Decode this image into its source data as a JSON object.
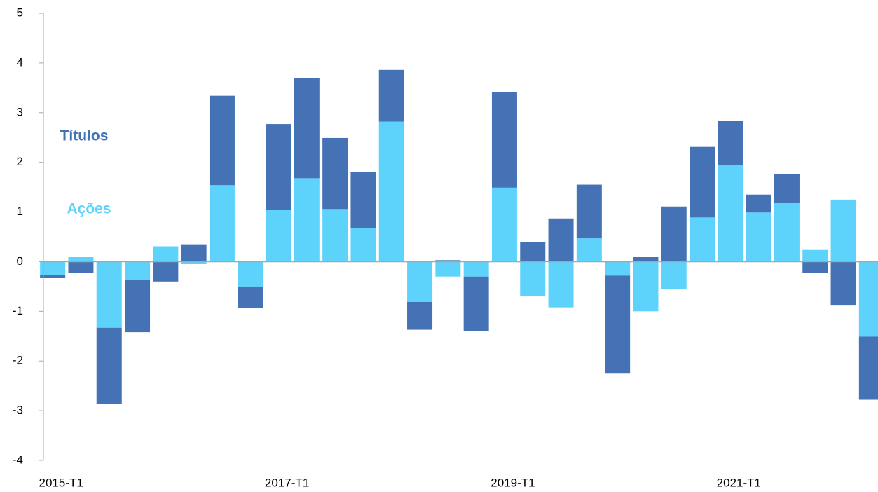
{
  "chart_data": {
    "type": "bar",
    "stacked": true,
    "categories": [
      "2015-T1",
      null,
      null,
      null,
      null,
      null,
      null,
      null,
      "2017-T1",
      null,
      null,
      null,
      null,
      null,
      null,
      null,
      "2019-T1",
      null,
      null,
      null,
      null,
      null,
      null,
      null,
      "2021-T1",
      null,
      null,
      null,
      null,
      null
    ],
    "series": [
      {
        "name": "Ações",
        "color": "#5dd3fb",
        "values": [
          -0.27,
          0.1,
          -1.33,
          -0.37,
          0.31,
          -0.04,
          1.54,
          -0.5,
          1.05,
          1.68,
          1.06,
          0.67,
          2.82,
          -0.81,
          -0.3,
          -0.3,
          1.49,
          -0.7,
          -0.92,
          0.47,
          -0.28,
          -1.0,
          -0.55,
          0.89,
          1.95,
          0.99,
          1.18,
          0.25,
          1.25,
          -1.51
        ]
      },
      {
        "name": "Títulos",
        "color": "#4472b4",
        "values": [
          -0.06,
          -0.22,
          -1.54,
          -1.05,
          -0.4,
          0.35,
          1.8,
          -0.43,
          1.72,
          2.02,
          1.43,
          1.13,
          1.04,
          -0.56,
          0.03,
          -1.09,
          1.93,
          0.39,
          0.87,
          1.08,
          -1.96,
          0.1,
          1.11,
          1.42,
          0.88,
          0.36,
          0.59,
          -0.23,
          -0.87,
          -1.27
        ]
      }
    ],
    "ylim": [
      -4,
      5
    ],
    "yticks": [
      -4,
      -3,
      -2,
      -1,
      0,
      1,
      2,
      3,
      4,
      5
    ]
  }
}
